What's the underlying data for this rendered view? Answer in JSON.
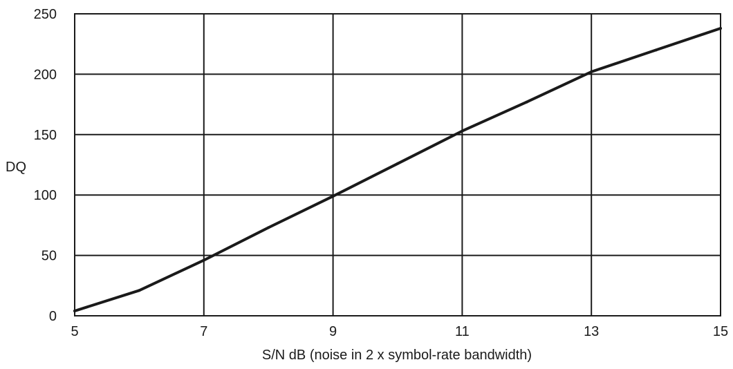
{
  "chart_data": {
    "type": "line",
    "title": "",
    "xlabel": "S/N dB (noise in 2 x symbol-rate bandwidth)",
    "ylabel": "DQ",
    "xlim": [
      5,
      15
    ],
    "ylim": [
      0,
      250
    ],
    "x_ticks": [
      "5",
      "7",
      "9",
      "11",
      "13",
      "15"
    ],
    "y_ticks": [
      "0",
      "50",
      "100",
      "150",
      "200",
      "250"
    ],
    "grid": true,
    "series": [
      {
        "x": [
          5,
          6,
          7,
          8,
          9,
          10,
          11,
          12,
          13,
          14,
          15
        ],
        "y": [
          4,
          21,
          46,
          73,
          99,
          126,
          153,
          177,
          202,
          220,
          238
        ]
      }
    ],
    "colors": {
      "line": "#1a1a1a",
      "grid": "#1a1a1a"
    }
  }
}
